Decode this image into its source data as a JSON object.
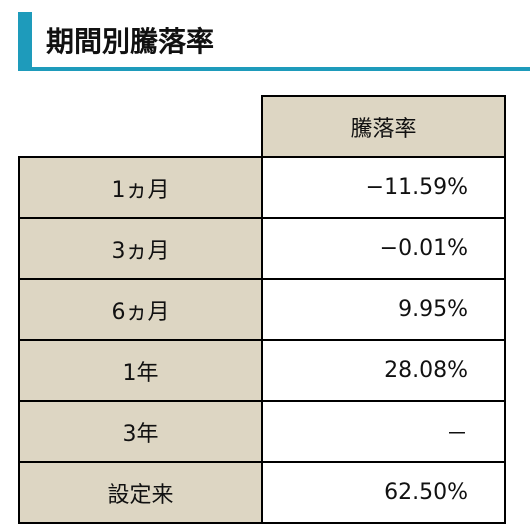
{
  "title": "期間別騰落率",
  "table": {
    "column_header": "騰落率",
    "rows": [
      [
        "1ヵ月",
        "−11.59%"
      ],
      [
        "3ヵ月",
        "−0.01%"
      ],
      [
        "6ヵ月",
        "9.95%"
      ],
      [
        "1年",
        "28.08%"
      ],
      [
        "3年",
        "－"
      ],
      [
        "設定来",
        "62.50%"
      ]
    ]
  }
}
